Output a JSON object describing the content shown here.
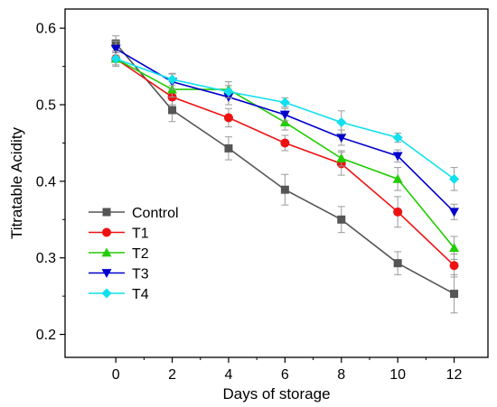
{
  "chart_data": {
    "type": "line",
    "title": "",
    "xlabel": "Days of storage",
    "ylabel": "Titratable Acidity",
    "xlim": [
      -1.8,
      13.2
    ],
    "ylim": [
      0.17,
      0.625
    ],
    "xticks": [
      0,
      2,
      4,
      6,
      8,
      10,
      12
    ],
    "yticks": [
      0.2,
      0.3,
      0.4,
      0.5,
      0.6
    ],
    "grid": false,
    "legend_position": "bottom-left",
    "x": [
      0,
      2,
      4,
      6,
      8,
      10,
      12
    ],
    "series": [
      {
        "name": "Control",
        "color": "#555555",
        "marker": "square",
        "values": [
          0.58,
          0.493,
          0.443,
          0.389,
          0.35,
          0.293,
          0.253
        ],
        "errors": [
          0.01,
          0.015,
          0.015,
          0.02,
          0.017,
          0.015,
          0.025
        ]
      },
      {
        "name": "T1",
        "color": "#ee1111",
        "marker": "circle",
        "values": [
          0.56,
          0.51,
          0.483,
          0.45,
          0.423,
          0.36,
          0.29
        ],
        "errors": [
          0.008,
          0.01,
          0.012,
          0.01,
          0.015,
          0.02,
          0.015
        ]
      },
      {
        "name": "T2",
        "color": "#22cc00",
        "marker": "triangle-up",
        "values": [
          0.56,
          0.52,
          0.52,
          0.477,
          0.43,
          0.403,
          0.313
        ],
        "errors": [
          0.008,
          0.01,
          0.01,
          0.01,
          0.01,
          0.015,
          0.015
        ]
      },
      {
        "name": "T3",
        "color": "#0000cc",
        "marker": "triangle-down",
        "values": [
          0.573,
          0.53,
          0.51,
          0.487,
          0.457,
          0.433,
          0.36
        ],
        "errors": [
          0.01,
          0.01,
          0.01,
          0.008,
          0.01,
          0.008,
          0.01
        ]
      },
      {
        "name": "T4",
        "color": "#11e0ee",
        "marker": "diamond",
        "values": [
          0.56,
          0.533,
          0.517,
          0.503,
          0.477,
          0.457,
          0.403
        ],
        "errors": [
          0.01,
          0.008,
          0.008,
          0.006,
          0.015,
          0.006,
          0.015
        ]
      }
    ]
  }
}
